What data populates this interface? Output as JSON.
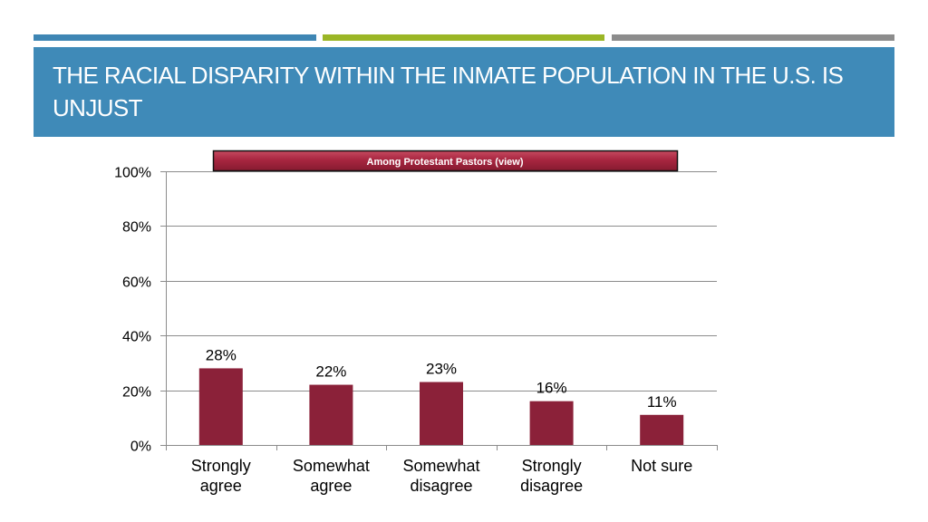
{
  "theme": {
    "stripe_colors": [
      "#3E86B4",
      "#9BB626",
      "#8C8C8C"
    ],
    "title_band_color": "#3F8AB8",
    "bar_color": "#8B2139",
    "banner_color": "#A82640"
  },
  "header": {
    "title": "The Racial Disparity Within the Inmate Population in the U.S. Is Unjust"
  },
  "chart_data": {
    "type": "bar",
    "banner": "Among Protestant Pastors (view)",
    "categories": [
      [
        "Strongly",
        "agree"
      ],
      [
        "Somewhat",
        "agree"
      ],
      [
        "Somewhat",
        "disagree"
      ],
      [
        "Strongly",
        "disagree"
      ],
      [
        "Not sure"
      ]
    ],
    "values": [
      28,
      22,
      23,
      16,
      11
    ],
    "value_labels": [
      "28%",
      "22%",
      "23%",
      "16%",
      "11%"
    ],
    "yticks": [
      "0%",
      "20%",
      "40%",
      "60%",
      "80%",
      "100%"
    ],
    "ylim": [
      0,
      100
    ],
    "grid": true
  }
}
